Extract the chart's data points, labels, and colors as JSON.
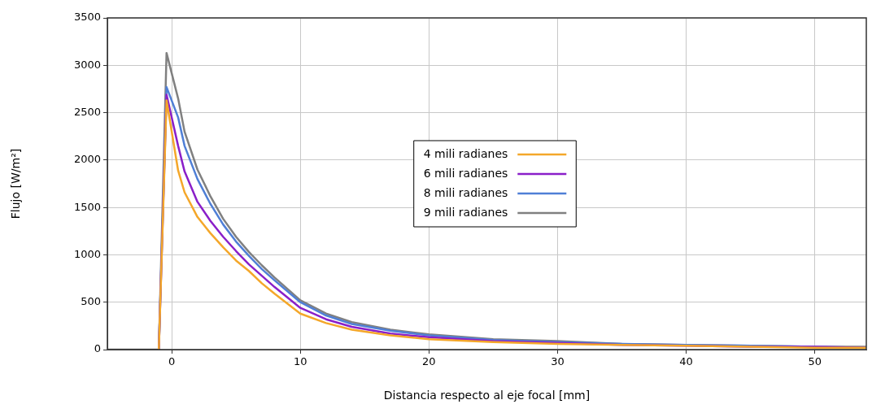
{
  "chart_data": {
    "type": "line",
    "xlabel": "Distancia respecto al eje focal [mm]",
    "ylabel": "Flujo [W/m²]",
    "x": [
      -5,
      -1,
      -0.4,
      0.5,
      1,
      2,
      3,
      4,
      5,
      6,
      7,
      8,
      10,
      12,
      14,
      17,
      20,
      25,
      30,
      35,
      40,
      45,
      50,
      54
    ],
    "series": [
      {
        "name": "4 mili radianes",
        "color": "#f4a72a",
        "values": [
          null,
          0,
          2630,
          1890,
          1660,
          1400,
          1230,
          1080,
          940,
          830,
          700,
          590,
          380,
          280,
          210,
          150,
          110,
          80,
          60,
          50,
          40,
          30,
          20,
          20
        ]
      },
      {
        "name": "6 mili radianes",
        "color": "#8a1fc9",
        "values": [
          null,
          0,
          2690,
          2150,
          1880,
          1560,
          1360,
          1190,
          1040,
          900,
          780,
          660,
          440,
          320,
          240,
          170,
          130,
          90,
          70,
          50,
          40,
          30,
          30,
          20
        ]
      },
      {
        "name": "8 mili radianes",
        "color": "#4f7fd6",
        "values": [
          null,
          0,
          2770,
          2450,
          2150,
          1800,
          1540,
          1320,
          1140,
          990,
          850,
          730,
          500,
          360,
          270,
          200,
          150,
          100,
          80,
          60,
          50,
          40,
          30,
          20
        ]
      },
      {
        "name": "9 mili radianes",
        "color": "#808080",
        "values": [
          0,
          0,
          3130,
          2650,
          2300,
          1900,
          1620,
          1380,
          1190,
          1030,
          890,
          760,
          520,
          380,
          290,
          210,
          160,
          110,
          90,
          60,
          50,
          40,
          30,
          30
        ]
      }
    ],
    "xlim": [
      -5,
      54
    ],
    "xticks": [
      0,
      10,
      20,
      30,
      40,
      50
    ],
    "ylim": [
      0,
      3500
    ],
    "yticks": [
      0,
      500,
      1000,
      1500,
      2000,
      2500,
      3000,
      3500
    ],
    "grid": true,
    "legend": "center",
    "marker": "none",
    "line_style": "solid"
  }
}
